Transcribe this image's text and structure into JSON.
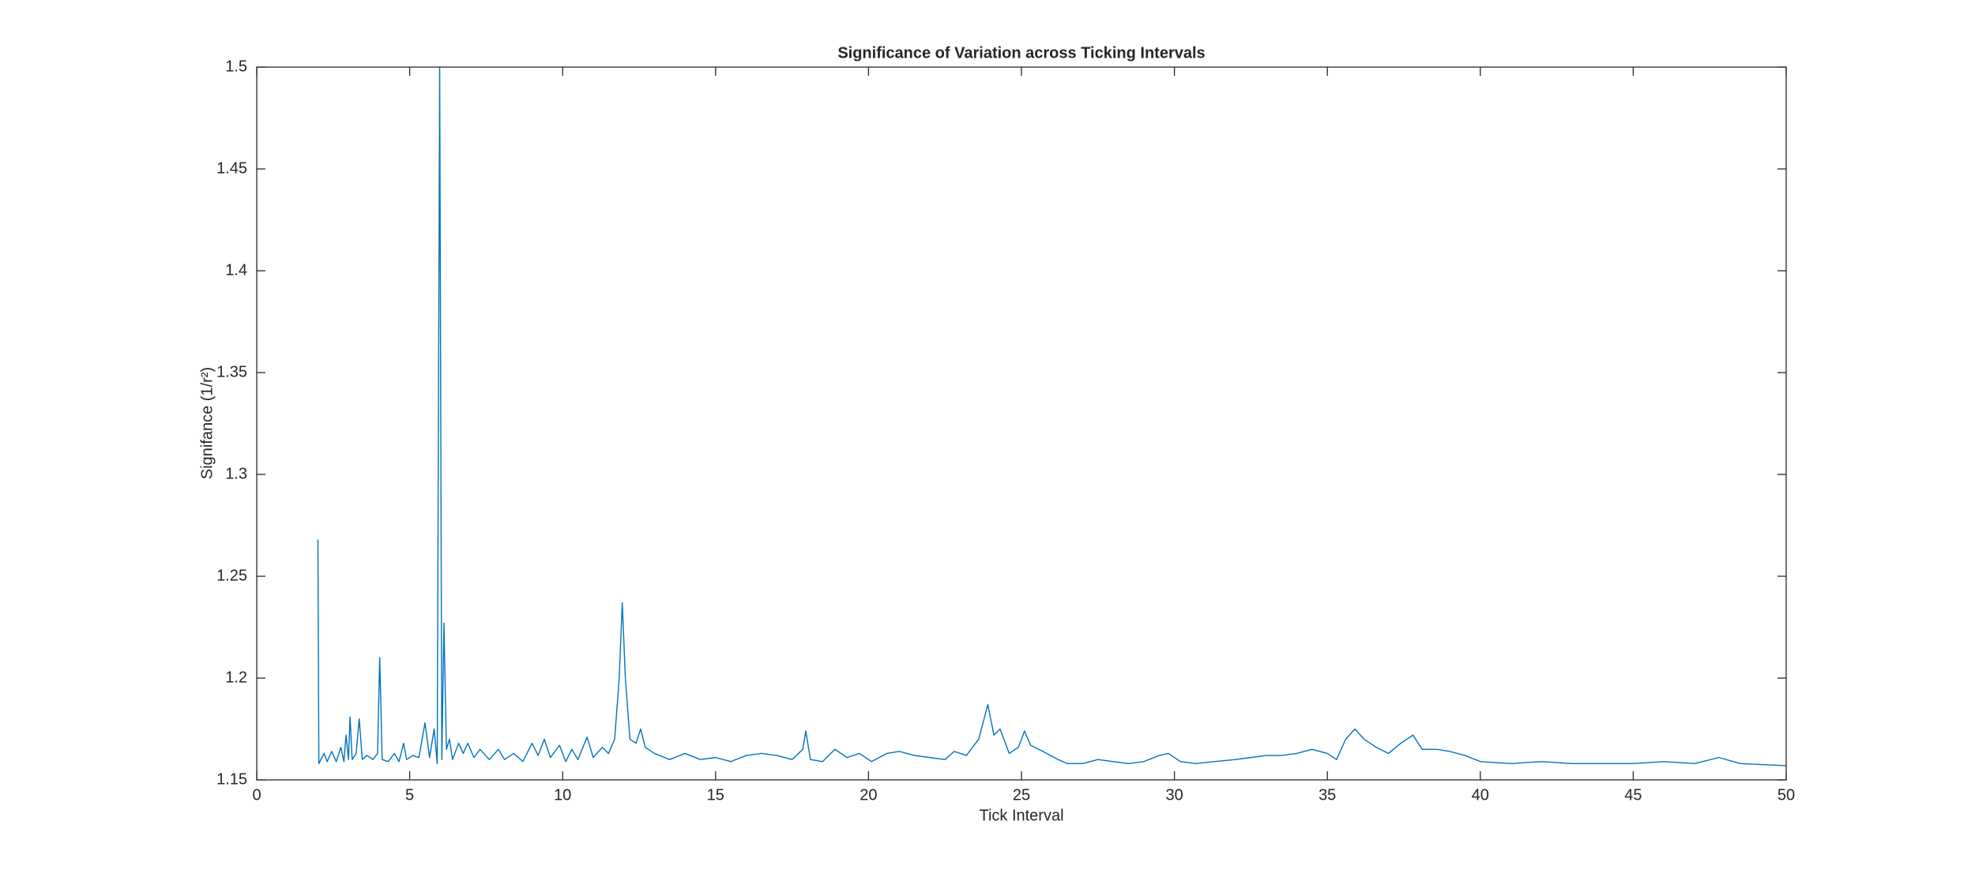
{
  "chart_data": {
    "type": "line",
    "title": "Significance of Variation across Ticking Intervals",
    "xlabel": "Tick Interval",
    "ylabel": "Signifance (1/r²)",
    "color": "#0072bd",
    "xlim": [
      0,
      50
    ],
    "xticks": [
      0,
      5,
      10,
      15,
      20,
      25,
      30,
      35,
      40,
      45,
      50
    ],
    "ylim": [
      1.15,
      1.5
    ],
    "yticks": [
      1.15,
      1.2,
      1.25,
      1.3,
      1.35,
      1.4,
      1.45,
      1.5
    ],
    "grid": false,
    "x": [
      2.0,
      2.03,
      2.2,
      2.3,
      2.45,
      2.6,
      2.75,
      2.85,
      2.92,
      3.0,
      3.05,
      3.12,
      3.25,
      3.35,
      3.45,
      3.6,
      3.8,
      3.95,
      4.02,
      4.1,
      4.3,
      4.5,
      4.65,
      4.8,
      4.9,
      5.1,
      5.3,
      5.5,
      5.65,
      5.8,
      5.9,
      5.98,
      6.05,
      6.12,
      6.2,
      6.3,
      6.4,
      6.6,
      6.75,
      6.9,
      7.1,
      7.3,
      7.6,
      7.9,
      8.1,
      8.4,
      8.7,
      9.0,
      9.2,
      9.4,
      9.6,
      9.9,
      10.1,
      10.3,
      10.5,
      10.8,
      11.0,
      11.3,
      11.5,
      11.7,
      11.85,
      11.95,
      12.05,
      12.2,
      12.4,
      12.55,
      12.7,
      13.0,
      13.5,
      14.0,
      14.5,
      15.0,
      15.5,
      16.0,
      16.5,
      17.0,
      17.5,
      17.85,
      17.95,
      18.1,
      18.5,
      18.9,
      19.3,
      19.7,
      20.1,
      20.6,
      21.0,
      21.5,
      22.0,
      22.5,
      22.8,
      23.2,
      23.6,
      23.9,
      24.1,
      24.3,
      24.6,
      24.9,
      25.1,
      25.3,
      25.7,
      26.2,
      26.5,
      27.0,
      27.5,
      28.0,
      28.5,
      29.0,
      29.5,
      29.8,
      30.2,
      30.7,
      31.3,
      32.0,
      32.5,
      33.0,
      33.5,
      34.0,
      34.5,
      35.0,
      35.3,
      35.6,
      35.9,
      36.2,
      36.6,
      37.0,
      37.4,
      37.8,
      38.1,
      38.6,
      39.0,
      39.5,
      40.0,
      41.0,
      42.0,
      43.0,
      44.0,
      45.0,
      46.0,
      47.0,
      47.8,
      48.5,
      50.0
    ],
    "values": [
      1.268,
      1.158,
      1.163,
      1.159,
      1.164,
      1.159,
      1.166,
      1.159,
      1.172,
      1.16,
      1.181,
      1.16,
      1.163,
      1.18,
      1.16,
      1.162,
      1.16,
      1.163,
      1.21,
      1.16,
      1.159,
      1.163,
      1.159,
      1.168,
      1.16,
      1.162,
      1.161,
      1.178,
      1.161,
      1.175,
      1.158,
      1.5,
      1.16,
      1.227,
      1.165,
      1.17,
      1.16,
      1.168,
      1.163,
      1.168,
      1.161,
      1.165,
      1.16,
      1.165,
      1.16,
      1.163,
      1.159,
      1.168,
      1.162,
      1.17,
      1.161,
      1.167,
      1.159,
      1.165,
      1.16,
      1.171,
      1.161,
      1.166,
      1.163,
      1.17,
      1.2,
      1.237,
      1.2,
      1.17,
      1.168,
      1.175,
      1.166,
      1.163,
      1.16,
      1.163,
      1.16,
      1.161,
      1.159,
      1.162,
      1.163,
      1.162,
      1.16,
      1.165,
      1.174,
      1.16,
      1.159,
      1.165,
      1.161,
      1.163,
      1.159,
      1.163,
      1.164,
      1.162,
      1.161,
      1.16,
      1.164,
      1.162,
      1.17,
      1.187,
      1.172,
      1.175,
      1.163,
      1.166,
      1.174,
      1.167,
      1.164,
      1.16,
      1.158,
      1.158,
      1.16,
      1.159,
      1.158,
      1.159,
      1.162,
      1.163,
      1.159,
      1.158,
      1.159,
      1.16,
      1.161,
      1.162,
      1.162,
      1.163,
      1.165,
      1.163,
      1.16,
      1.17,
      1.175,
      1.17,
      1.166,
      1.163,
      1.168,
      1.172,
      1.165,
      1.165,
      1.164,
      1.162,
      1.159,
      1.158,
      1.159,
      1.158,
      1.158,
      1.158,
      1.159,
      1.158,
      1.161,
      1.158,
      1.157
    ]
  }
}
